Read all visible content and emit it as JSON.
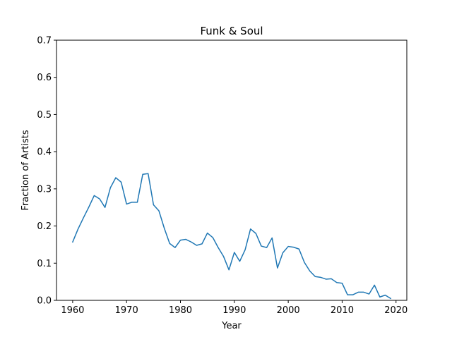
{
  "chart_data": {
    "type": "line",
    "title": "Funk & Soul",
    "xlabel": "Year",
    "ylabel": "Fraction of Artists",
    "xlim": [
      1957,
      2022
    ],
    "ylim": [
      0,
      0.7
    ],
    "xticks": [
      1960,
      1970,
      1980,
      1990,
      2000,
      2010,
      2020
    ],
    "yticks": [
      "0.0",
      "0.1",
      "0.2",
      "0.3",
      "0.4",
      "0.5",
      "0.6",
      "0.7"
    ],
    "grid": false,
    "series": [
      {
        "color": "#1f77b4",
        "x": [
          1960,
          1961,
          1962,
          1963,
          1964,
          1965,
          1966,
          1967,
          1968,
          1969,
          1970,
          1971,
          1972,
          1973,
          1974,
          1975,
          1976,
          1977,
          1978,
          1979,
          1980,
          1981,
          1982,
          1983,
          1984,
          1985,
          1986,
          1987,
          1988,
          1989,
          1990,
          1991,
          1992,
          1993,
          1994,
          1995,
          1996,
          1997,
          1998,
          1999,
          2000,
          2001,
          2002,
          2003,
          2004,
          2005,
          2006,
          2007,
          2008,
          2009,
          2010,
          2011,
          2012,
          2013,
          2014,
          2015,
          2016,
          2017,
          2018,
          2019
        ],
        "values": [
          0.157,
          0.192,
          0.222,
          0.251,
          0.282,
          0.273,
          0.25,
          0.303,
          0.33,
          0.318,
          0.259,
          0.264,
          0.264,
          0.339,
          0.341,
          0.257,
          0.241,
          0.194,
          0.153,
          0.142,
          0.162,
          0.164,
          0.157,
          0.148,
          0.152,
          0.181,
          0.169,
          0.142,
          0.118,
          0.082,
          0.129,
          0.105,
          0.136,
          0.192,
          0.18,
          0.146,
          0.142,
          0.168,
          0.087,
          0.128,
          0.145,
          0.143,
          0.138,
          0.102,
          0.079,
          0.064,
          0.062,
          0.057,
          0.058,
          0.048,
          0.046,
          0.015,
          0.015,
          0.022,
          0.022,
          0.017,
          0.041,
          0.009,
          0.014,
          0.005
        ]
      }
    ]
  }
}
